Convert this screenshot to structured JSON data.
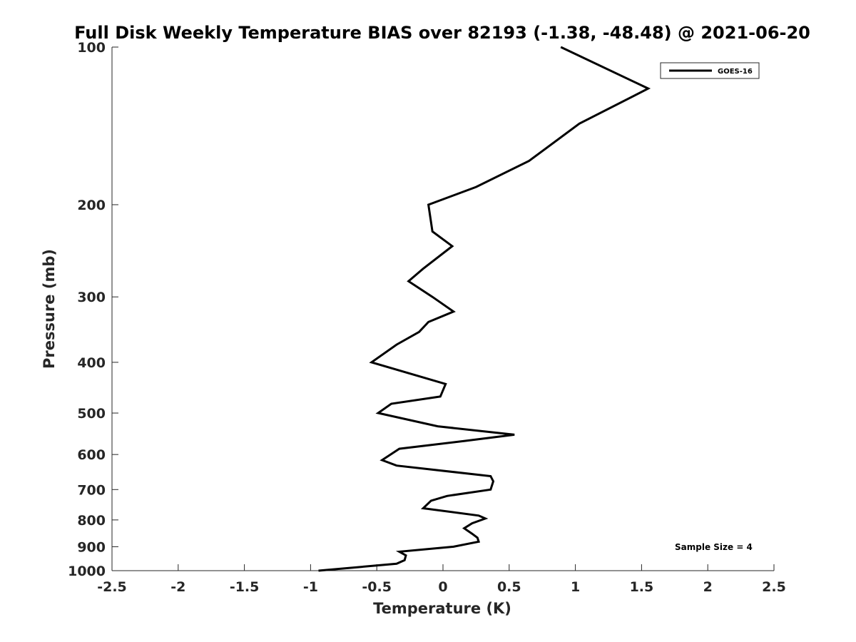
{
  "chart_data": {
    "type": "line",
    "title": "Full Disk Weekly Temperature BIAS over 82193 (-1.38, -48.48) @ 2021-06-20",
    "xlabel": "Temperature (K)",
    "ylabel": "Pressure (mb)",
    "xlim": [
      -2.5,
      2.5
    ],
    "ylim": [
      1000,
      100
    ],
    "yscale": "log",
    "y_reversed": true,
    "xticks": [
      "-2.5",
      "-2",
      "-1.5",
      "-1",
      "-0.5",
      "0",
      "0.5",
      "1",
      "1.5",
      "2",
      "2.5"
    ],
    "xtick_values": [
      -2.5,
      -2,
      -1.5,
      -1,
      -0.5,
      0,
      0.5,
      1,
      1.5,
      2,
      2.5
    ],
    "yticks": [
      "100",
      "200",
      "300",
      "400",
      "500",
      "600",
      "700",
      "800",
      "900",
      "1000"
    ],
    "ytick_values": [
      100,
      200,
      300,
      400,
      500,
      600,
      700,
      800,
      900,
      1000
    ],
    "grid": false,
    "legend_position": "top-right",
    "annotation": "Sample Size = 4",
    "series": [
      {
        "name": "GOES-16",
        "color": "#000000",
        "points": [
          [
            0.89,
            100
          ],
          [
            1.55,
            120
          ],
          [
            1.03,
            140
          ],
          [
            0.65,
            165
          ],
          [
            0.25,
            185
          ],
          [
            -0.11,
            200
          ],
          [
            -0.08,
            225
          ],
          [
            0.07,
            240
          ],
          [
            -0.15,
            265
          ],
          [
            -0.26,
            280
          ],
          [
            -0.08,
            300
          ],
          [
            0.08,
            320
          ],
          [
            -0.11,
            335
          ],
          [
            -0.18,
            350
          ],
          [
            -0.35,
            370
          ],
          [
            -0.54,
            400
          ],
          [
            0.02,
            440
          ],
          [
            -0.02,
            465
          ],
          [
            -0.39,
            480
          ],
          [
            -0.49,
            500
          ],
          [
            -0.04,
            530
          ],
          [
            0.54,
            550
          ],
          [
            0.17,
            565
          ],
          [
            -0.33,
            585
          ],
          [
            -0.46,
            615
          ],
          [
            -0.35,
            630
          ],
          [
            0.36,
            660
          ],
          [
            0.38,
            675
          ],
          [
            0.36,
            700
          ],
          [
            0.03,
            720
          ],
          [
            -0.09,
            735
          ],
          [
            -0.15,
            760
          ],
          [
            0.27,
            785
          ],
          [
            0.32,
            795
          ],
          [
            0.22,
            812
          ],
          [
            0.16,
            830
          ],
          [
            0.22,
            850
          ],
          [
            0.26,
            865
          ],
          [
            0.27,
            880
          ],
          [
            0.08,
            900
          ],
          [
            -0.33,
            920
          ],
          [
            -0.28,
            935
          ],
          [
            -0.29,
            955
          ],
          [
            -0.35,
            970
          ],
          [
            -0.94,
            1000
          ]
        ]
      }
    ]
  }
}
